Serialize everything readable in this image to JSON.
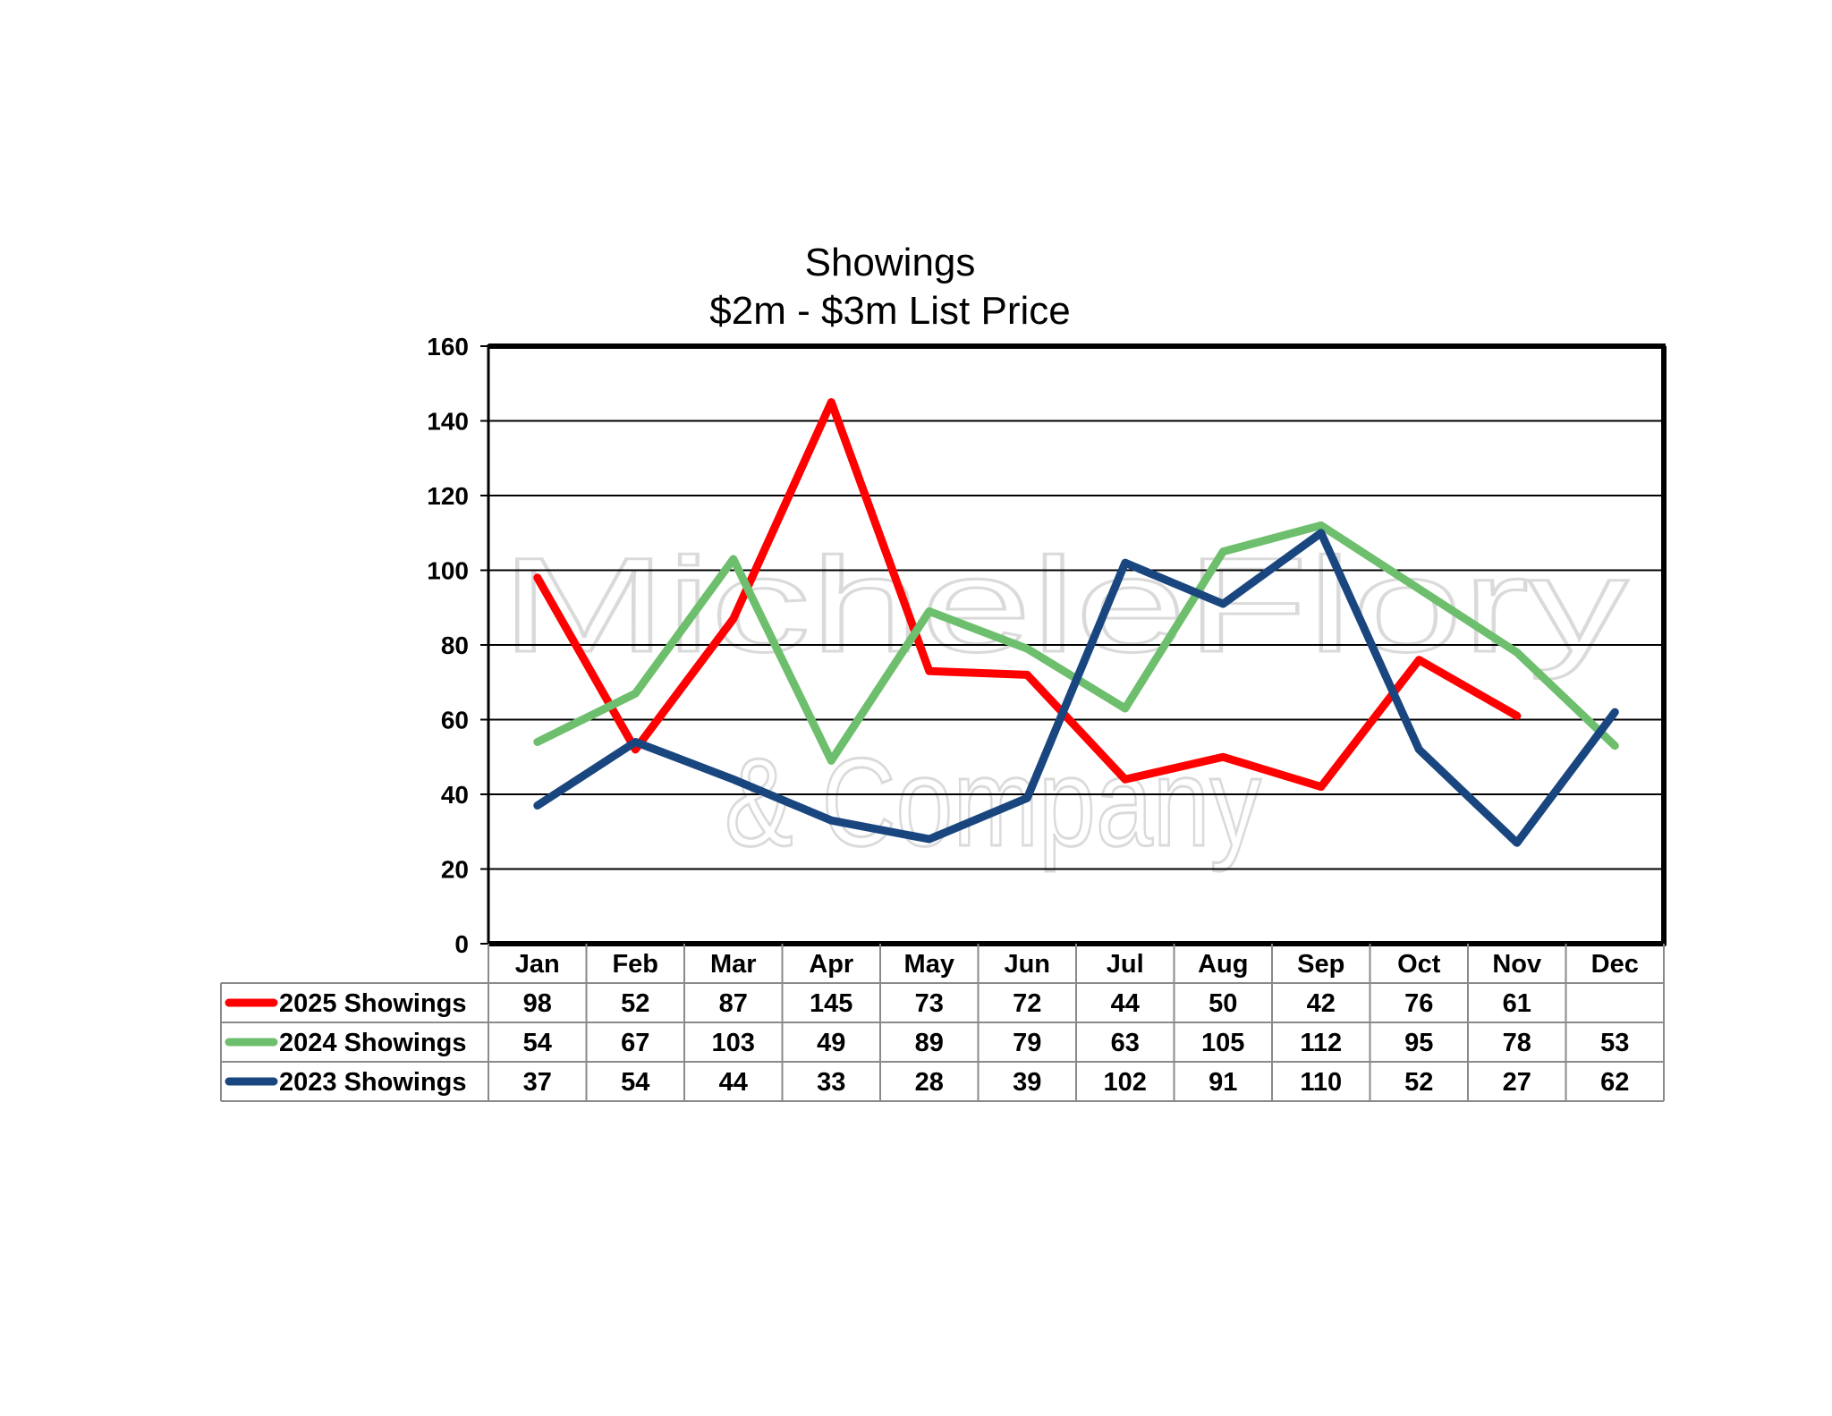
{
  "chart_data": {
    "type": "line",
    "title": "Showings",
    "subtitle": "$2m - $3m List Price",
    "categories": [
      "Jan",
      "Feb",
      "Mar",
      "Apr",
      "May",
      "Jun",
      "Jul",
      "Aug",
      "Sep",
      "Oct",
      "Nov",
      "Dec"
    ],
    "ylim": [
      0,
      160
    ],
    "yticks": [
      0,
      20,
      40,
      60,
      80,
      100,
      120,
      140,
      160
    ],
    "grid": true,
    "legend": "data table below chart",
    "watermark": [
      "MicheleFlory",
      "& Company"
    ],
    "series": [
      {
        "name": "2025 Showings",
        "color": "#ff0000",
        "values": [
          98,
          52,
          87,
          145,
          73,
          72,
          44,
          50,
          42,
          76,
          61,
          null
        ]
      },
      {
        "name": "2024 Showings",
        "color": "#6dbf6d",
        "values": [
          54,
          67,
          103,
          49,
          89,
          79,
          63,
          105,
          112,
          95,
          78,
          53
        ]
      },
      {
        "name": "2023 Showings",
        "color": "#1a4680",
        "values": [
          37,
          54,
          44,
          33,
          28,
          39,
          102,
          91,
          110,
          52,
          27,
          62
        ]
      }
    ]
  }
}
